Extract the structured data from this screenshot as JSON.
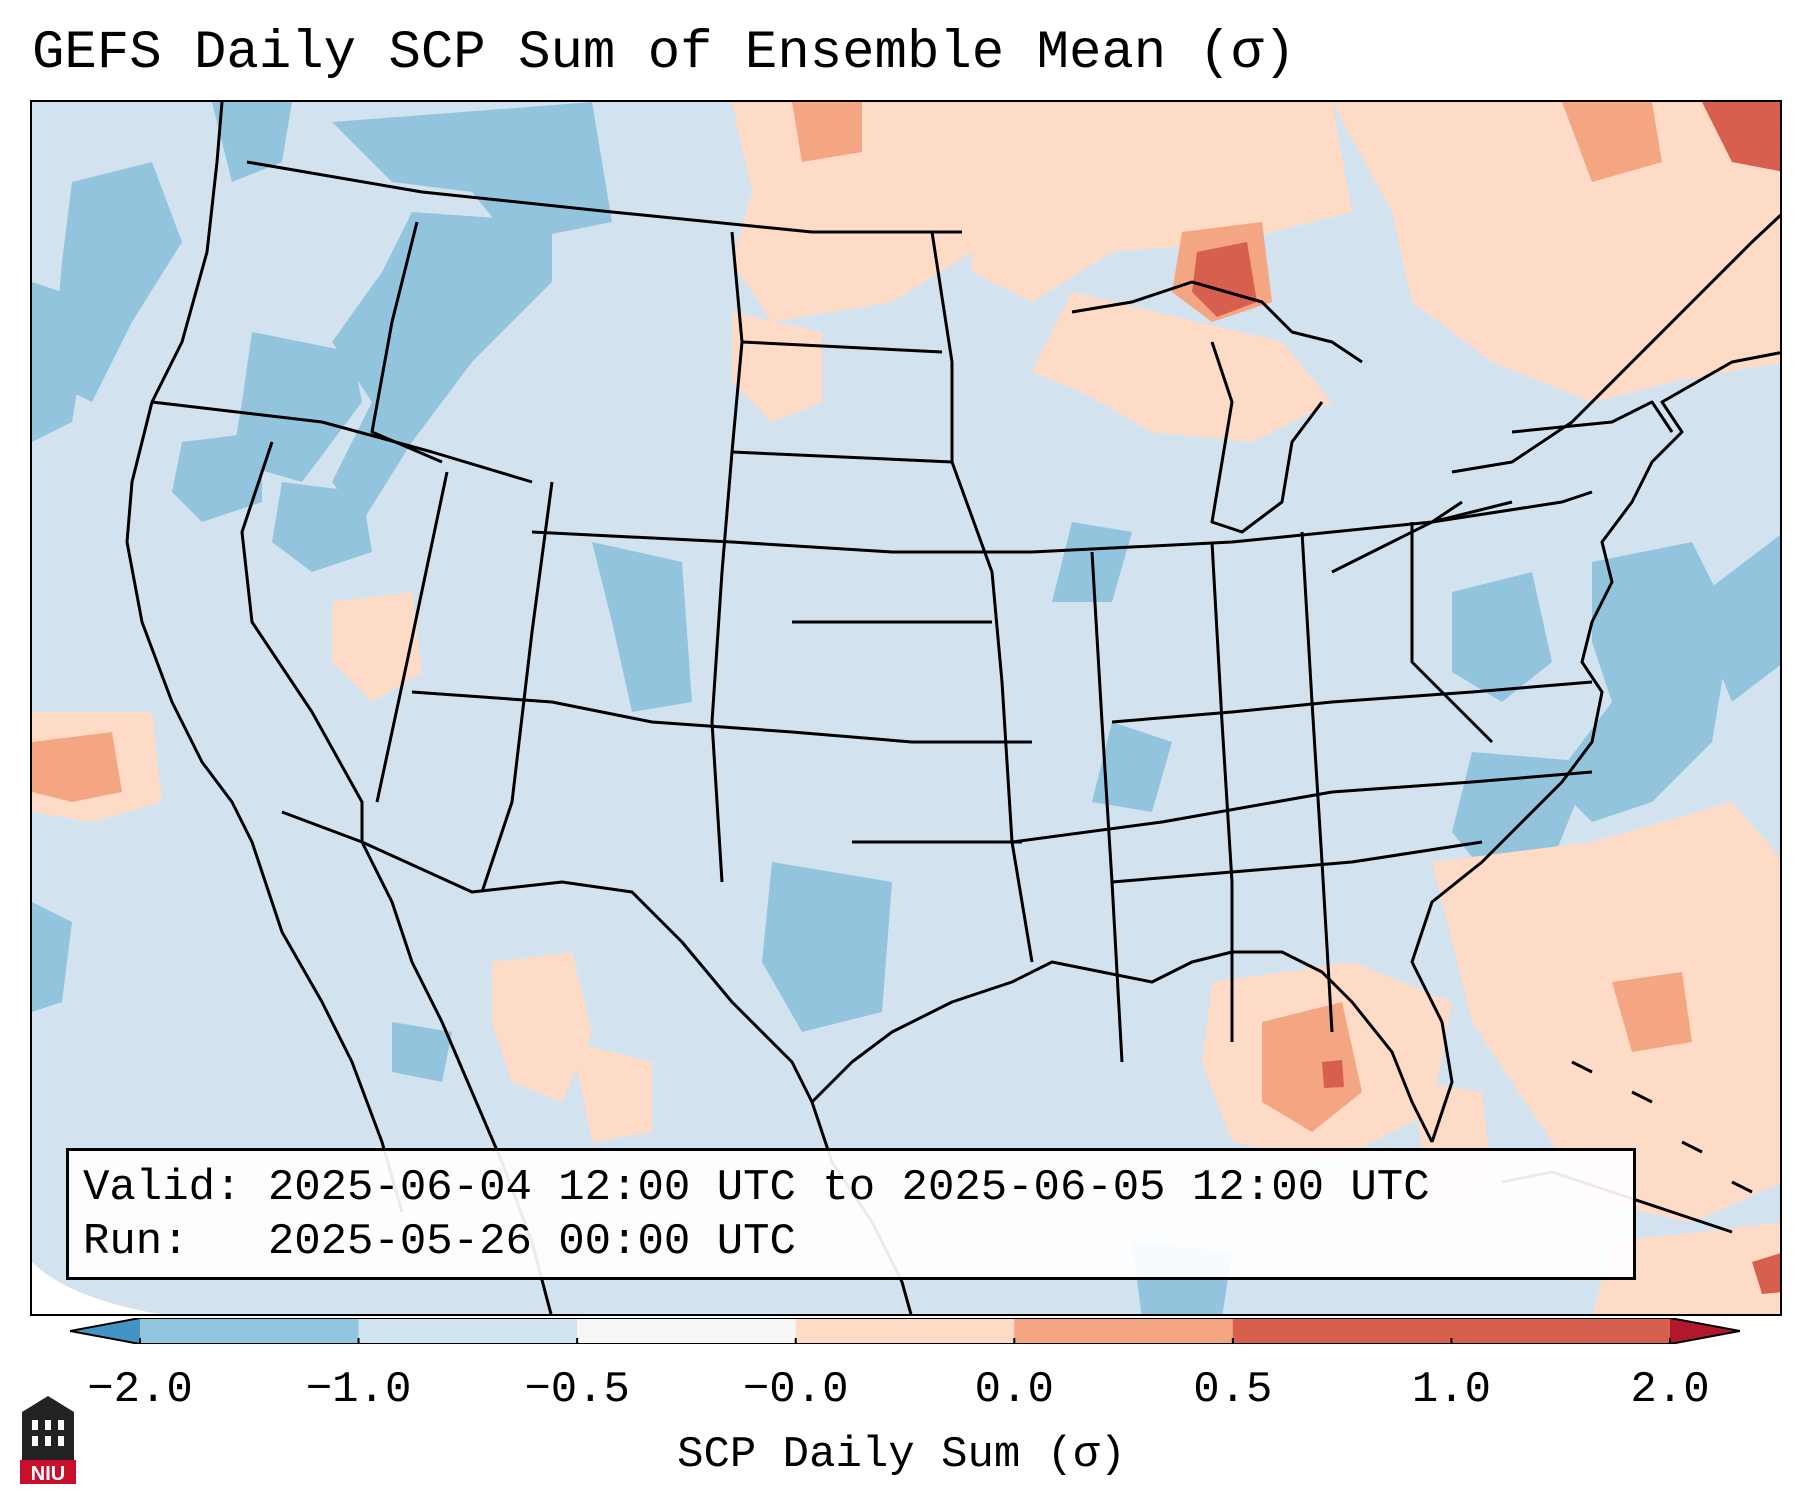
{
  "title": "GEFS Daily SCP Sum of Ensemble Mean (σ)",
  "info": {
    "valid_line": "Valid: 2025-06-04 12:00 UTC to 2025-06-05 12:00 UTC",
    "run_line": "Run:   2025-05-26 00:00 UTC"
  },
  "colorbar": {
    "label": "SCP Daily Sum (σ)",
    "ticks": [
      "−2.0",
      "−1.0",
      "−0.5",
      "−0.0",
      "0.0",
      "0.5",
      "1.0",
      "2.0"
    ],
    "colors": [
      "#4393c3",
      "#92c5de",
      "#d1e5f0",
      "#f7f7f7",
      "#fddbc7",
      "#f4a582",
      "#d6604d",
      "#b2182b"
    ]
  },
  "logo": {
    "text": "NIU",
    "color": "#c8102e"
  }
}
